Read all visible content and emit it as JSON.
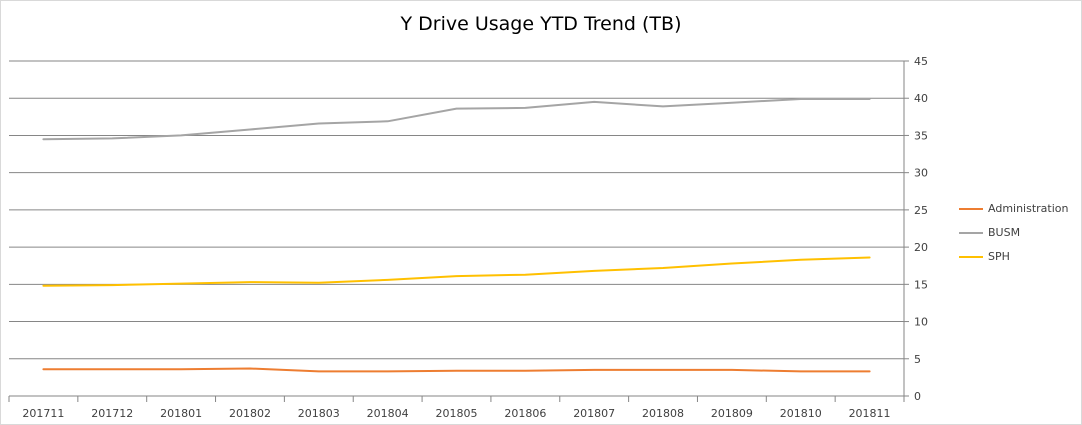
{
  "chart_data": {
    "type": "line",
    "title": "Y Drive Usage YTD Trend (TB)",
    "xlabel": "",
    "ylabel": "",
    "categories": [
      "201711",
      "201712",
      "201801",
      "201802",
      "201803",
      "201804",
      "201805",
      "201806",
      "201807",
      "201808",
      "201809",
      "201810",
      "201811"
    ],
    "ylim": [
      0,
      45
    ],
    "yticks": [
      0,
      5,
      10,
      15,
      20,
      25,
      30,
      35,
      40,
      45
    ],
    "y_axis_side": "right",
    "grid": true,
    "legend_position": "right",
    "series": [
      {
        "name": "Administration",
        "color": "#ed7d31",
        "values": [
          3.6,
          3.6,
          3.6,
          3.7,
          3.3,
          3.3,
          3.4,
          3.4,
          3.5,
          3.5,
          3.5,
          3.3,
          3.3
        ]
      },
      {
        "name": "BUSM",
        "color": "#a5a5a5",
        "values": [
          34.5,
          34.6,
          35.0,
          35.8,
          36.6,
          36.9,
          38.6,
          38.7,
          39.5,
          38.9,
          39.4,
          39.9,
          39.9
        ]
      },
      {
        "name": "SPH",
        "color": "#ffc000",
        "values": [
          14.8,
          14.9,
          15.1,
          15.3,
          15.2,
          15.6,
          16.1,
          16.3,
          16.8,
          17.2,
          17.8,
          18.3,
          18.6
        ]
      }
    ]
  }
}
